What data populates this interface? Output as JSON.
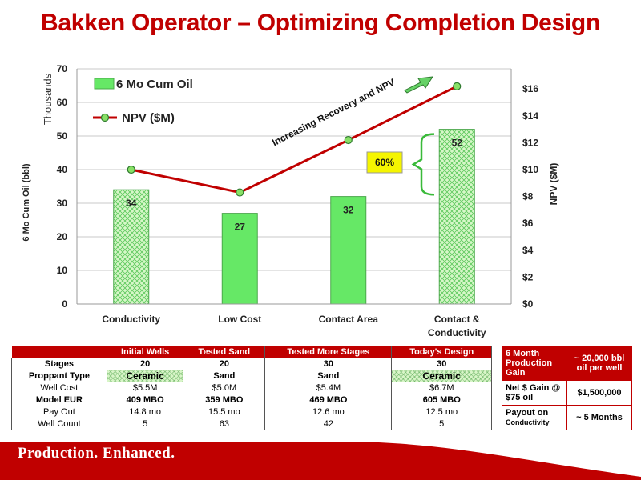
{
  "title": "Bakken Operator – Optimizing Completion Design",
  "colors": {
    "brand_red": "#c00000",
    "bar_green": "#66e866",
    "npv_line": "#c00000",
    "npv_marker": "#88e066",
    "callout_yellow": "#f5f500"
  },
  "chart_data": {
    "type": "bar",
    "categories": [
      "Conductivity",
      "Low Cost",
      "Contact Area",
      "Contact & Conductivity"
    ],
    "series": [
      {
        "name": "6 Mo Cum Oil",
        "type": "bar",
        "axis": "left",
        "values": [
          34,
          27,
          32,
          52
        ],
        "labels": [
          "34",
          "27",
          "32",
          "52"
        ]
      },
      {
        "name": "NPV ($M)",
        "type": "line",
        "axis": "right",
        "values": [
          10.0,
          8.3,
          12.2,
          16.2
        ]
      }
    ],
    "y_left": {
      "label": "6 Mo Cum Oil  (bbl)",
      "unit_label": "Thousands",
      "range": [
        0,
        70
      ],
      "ticks": [
        "0",
        "10",
        "20",
        "30",
        "40",
        "50",
        "60",
        "70"
      ]
    },
    "y_right": {
      "label": "NPV ($M)",
      "range": [
        0,
        17.5
      ],
      "ticks": [
        "$0",
        "$2",
        "$4",
        "$6",
        "$8",
        "$10",
        "$12",
        "$14",
        "$16"
      ]
    },
    "grid": true,
    "legend": "top-left",
    "annotations": {
      "trend": "Increasing Recovery and NPV",
      "increase": "60%"
    }
  },
  "table": {
    "columns": [
      "Initial Wells",
      "Tested Sand",
      "Tested More Stages",
      "Today's Design"
    ],
    "rows": [
      {
        "label": "Stages",
        "values": [
          "20",
          "20",
          "30",
          "30"
        ]
      },
      {
        "label": "Proppant Type",
        "values": [
          "Ceramic",
          "Sand",
          "Sand",
          "Ceramic"
        ]
      },
      {
        "label": "Well Cost",
        "values": [
          "$5.5M",
          "$5.0M",
          "$5.4M",
          "$6.7M"
        ]
      },
      {
        "label": "Model EUR",
        "values": [
          "409 MBO",
          "359 MBO",
          "469 MBO",
          "605 MBO"
        ]
      },
      {
        "label": "Pay Out",
        "values": [
          "14.8 mo",
          "15.5 mo",
          "12.6 mo",
          "12.5 mo"
        ]
      },
      {
        "label": "Well Count",
        "values": [
          "5",
          "63",
          "42",
          "5"
        ]
      }
    ]
  },
  "side_table": {
    "gain_label": "6 Month Production Gain",
    "gain_value": "~ 20,000 bbl  oil per well",
    "net_label": "Net $ Gain @  $75 oil",
    "net_value": "$1,500,000",
    "payout_label": "Payout on",
    "payout_sub": "Conductivity",
    "payout_value": "~ 5 Months"
  },
  "footer": "Production. Enhanced."
}
